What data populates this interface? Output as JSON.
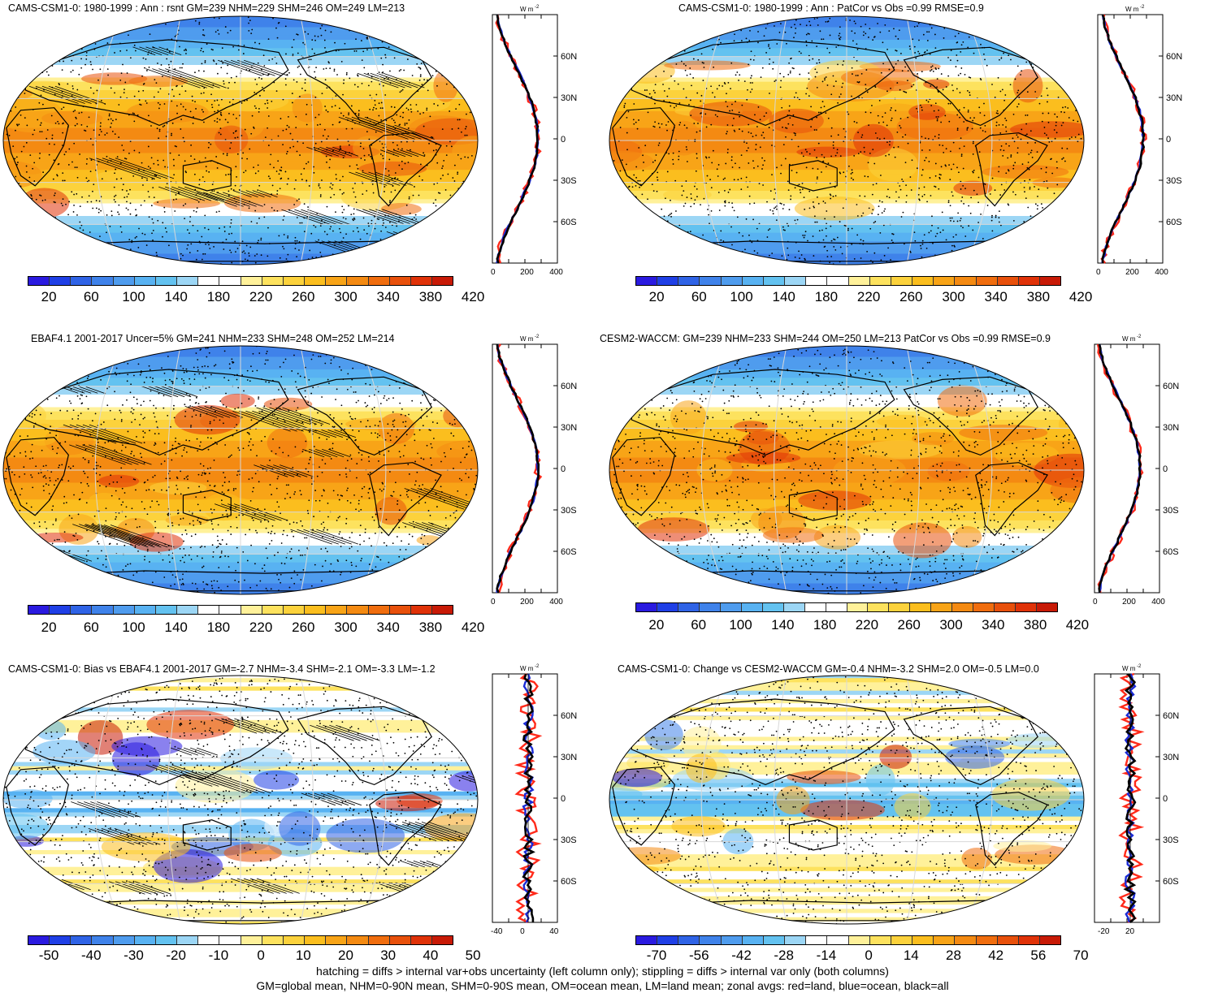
{
  "panels": [
    {
      "id": "p1",
      "title": "CAMS-CSM1-0: 1980-1999 : Ann : rsnt GM=239 NHM=229 SHM=246 OM=249 LM=213",
      "scale": "abs",
      "cb_labels": [
        "20",
        "60",
        "100",
        "140",
        "180",
        "220",
        "260",
        "300",
        "340",
        "380",
        "420"
      ],
      "zonal_ticks": [
        "0",
        "200",
        "400"
      ],
      "hatch": true
    },
    {
      "id": "p2",
      "title": "CAMS-CSM1-0: 1980-1999 : Ann : PatCor vs Obs =0.99 RMSE=0.9",
      "scale": "abs",
      "cb_labels": [
        "20",
        "60",
        "100",
        "140",
        "180",
        "220",
        "260",
        "300",
        "340",
        "380",
        "420"
      ],
      "zonal_ticks": [
        "0",
        "200",
        "400"
      ],
      "hatch": false
    },
    {
      "id": "p3",
      "title": "EBAF4.1 2001-2017 Uncer=5% GM=241 NHM=233 SHM=248 OM=252 LM=214",
      "scale": "abs",
      "cb_labels": [
        "20",
        "60",
        "100",
        "140",
        "180",
        "220",
        "260",
        "300",
        "340",
        "380",
        "420"
      ],
      "zonal_ticks": [
        "0",
        "200",
        "400"
      ],
      "hatch": true
    },
    {
      "id": "p4",
      "title": "CESM2-WACCM: GM=239 NHM=233 SHM=244 OM=250 LM=213 PatCor vs Obs =0.99 RMSE=0.9",
      "scale": "abs",
      "cb_labels": [
        "20",
        "60",
        "100",
        "140",
        "180",
        "220",
        "260",
        "300",
        "340",
        "380",
        "420"
      ],
      "zonal_ticks": [
        "0",
        "200",
        "400"
      ],
      "hatch": false
    },
    {
      "id": "p5",
      "title": "CAMS-CSM1-0: Bias vs EBAF4.1 2001-2017 GM=-2.7 NHM=-3.4 SHM=-2.1 OM=-3.3 LM=-1.2",
      "scale": "diff",
      "cb_labels": [
        "-50",
        "-40",
        "-30",
        "-20",
        "-10",
        "0",
        "10",
        "20",
        "30",
        "40",
        "50"
      ],
      "zonal_ticks": [
        "-40",
        "0",
        "40"
      ],
      "hatch": true
    },
    {
      "id": "p6",
      "title": "CAMS-CSM1-0: Change vs CESM2-WACCM GM=-0.4 NHM=-3.2 SHM=2.0 OM=-0.5 LM=0.0",
      "scale": "diff",
      "cb_labels": [
        "-70",
        "-56",
        "-42",
        "-28",
        "-14",
        "0",
        "14",
        "28",
        "42",
        "56",
        "70"
      ],
      "zonal_ticks": [
        "-20",
        "20"
      ],
      "hatch": false
    }
  ],
  "lat_labels": [
    "60N",
    "30N",
    "0",
    "30S",
    "60S"
  ],
  "unit_label": "W m",
  "unit_sup": "-2",
  "colors": {
    "land_line": "#ff2a1a",
    "ocean_line": "#1a2bd6",
    "all_line": "#000000",
    "palette": [
      "#2a1ae0",
      "#1f3fe6",
      "#2f63e6",
      "#3f82ea",
      "#4f9cee",
      "#58b2f2",
      "#63c2f0",
      "#9cd6f5",
      "#ffffff",
      "#ffffff",
      "#fff19a",
      "#fde25e",
      "#fcd23c",
      "#fbbe1e",
      "#f8a417",
      "#f48a12",
      "#f06d0e",
      "#e8500b",
      "#e03208",
      "#c81a06"
    ]
  },
  "footer": {
    "line1": "hatching = diffs > internal var+obs uncertainty (left column only); stippling = diffs > internal var only (both columns)",
    "line2": "GM=global mean, NHM=0-90N mean, SHM=0-90S mean, OM=ocean mean, LM=land mean; zonal avgs: red=land, blue=ocean, black=all"
  }
}
